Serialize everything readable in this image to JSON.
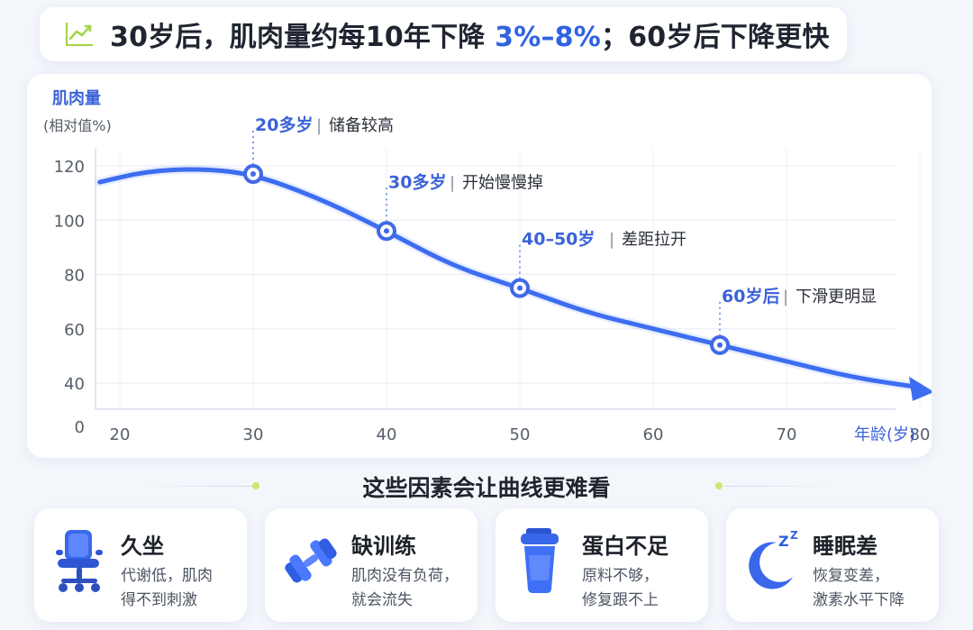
{
  "header": {
    "icon": "trend-chart-icon",
    "headline_prefix": "30岁后，肌肉量约每10年下降 ",
    "headline_highlight": "3%–8%",
    "headline_suffix": "；60岁后下降更快"
  },
  "chart_data": {
    "type": "line",
    "title": "",
    "ylabel_line1": "肌肉量",
    "ylabel_line2": "(相对值%)",
    "xlabel": "年龄(岁)",
    "xlim": [
      20,
      80
    ],
    "ylim": [
      0,
      120
    ],
    "x_ticks": [
      20,
      30,
      40,
      50,
      60,
      70,
      80
    ],
    "y_ticks": [
      120,
      100,
      80,
      60,
      40,
      0
    ],
    "grid": true,
    "series": [
      {
        "color": "#3d6df0",
        "points": [
          [
            18.5,
            114
          ],
          [
            22,
            118
          ],
          [
            26,
            119
          ],
          [
            30,
            117
          ],
          [
            35,
            108
          ],
          [
            40,
            96
          ],
          [
            45,
            83
          ],
          [
            50,
            75
          ],
          [
            55,
            66
          ],
          [
            60,
            60
          ],
          [
            65,
            54
          ],
          [
            70,
            48
          ],
          [
            75,
            42
          ],
          [
            80,
            36
          ]
        ]
      }
    ],
    "markers": [
      {
        "x": 30,
        "y": 117,
        "age": "20多岁",
        "desc": "储备较高"
      },
      {
        "x": 40,
        "y": 96,
        "age": "30多岁",
        "desc": "开始慢慢掉"
      },
      {
        "x": 50,
        "y": 75,
        "age": "40–50岁",
        "desc": "差距拉开"
      },
      {
        "x": 65,
        "y": 54,
        "age": "60岁后",
        "desc": "下滑更明显"
      }
    ]
  },
  "factors_title": "这些因素会让曲线更难看",
  "factors": [
    {
      "icon": "office-chair-icon",
      "title": "久坐",
      "desc_line1": "代谢低，肌肉",
      "desc_line2": "得不到刺激"
    },
    {
      "icon": "dumbbell-icon",
      "title": "缺训练",
      "desc_line1": "肌肉没有负荷，",
      "desc_line2": "就会流失"
    },
    {
      "icon": "protein-shaker-icon",
      "title": "蛋白不足",
      "desc_line1": "原料不够，",
      "desc_line2": "修复跟不上"
    },
    {
      "icon": "moon-sleep-icon",
      "title": "睡眠差",
      "desc_line1": "恢复变差，",
      "desc_line2": "激素水平下降"
    }
  ]
}
